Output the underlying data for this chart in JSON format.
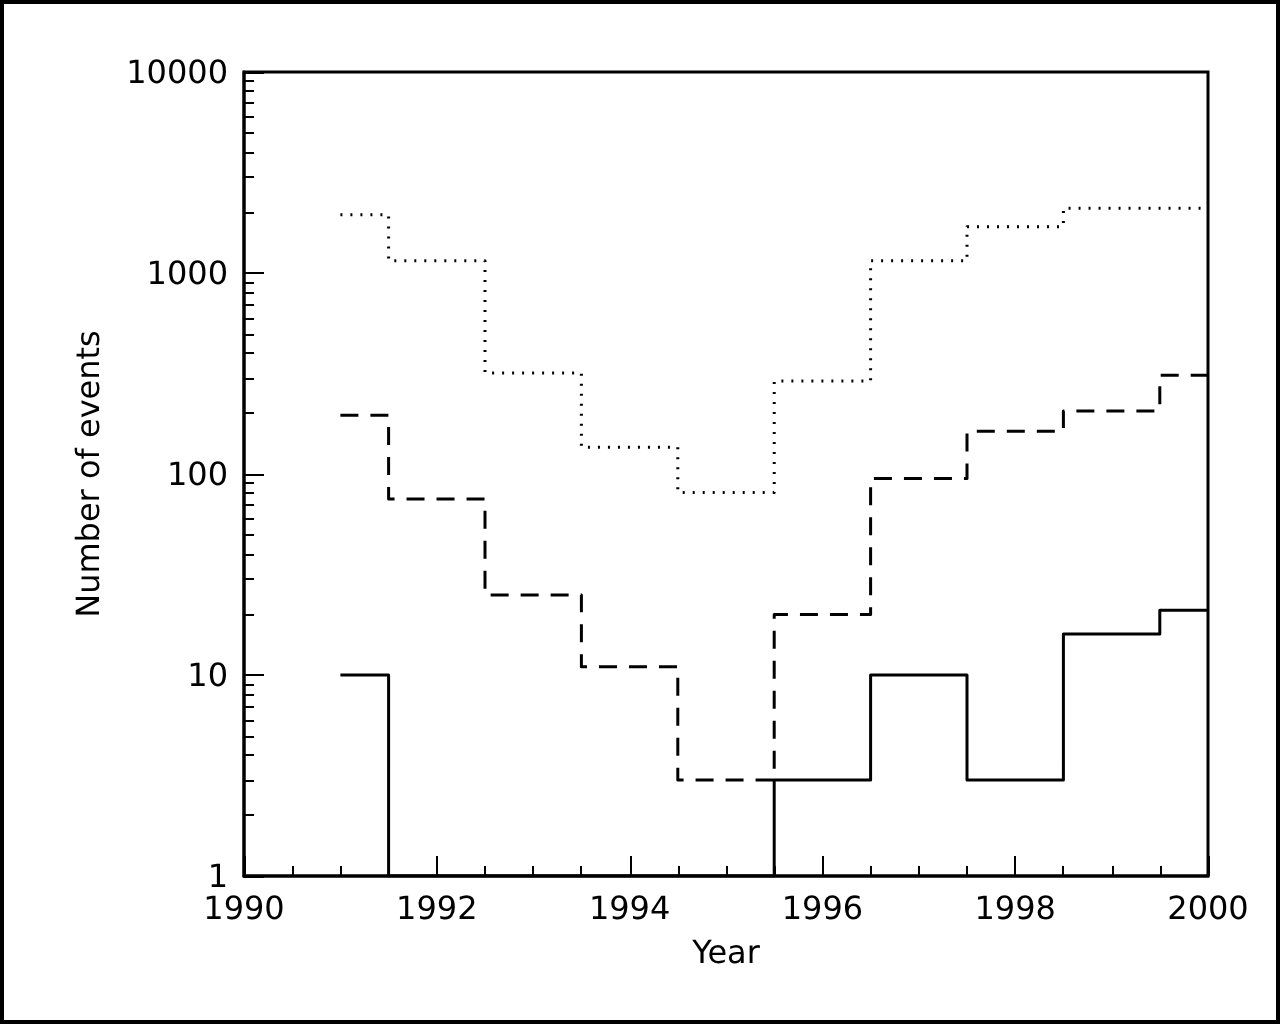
{
  "chart_data": {
    "type": "step",
    "xlabel": "Year",
    "ylabel": "Number of events",
    "x": [
      1991,
      1992,
      1993,
      1994,
      1995,
      1996,
      1997,
      1998,
      1999,
      2000
    ],
    "series": [
      {
        "color": "#000000",
        "line_style": "dotted",
        "values": [
          1950,
          1150,
          318,
          136,
          81,
          290,
          1150,
          1700,
          2100,
          2100
        ]
      },
      {
        "color": "#000000",
        "line_style": "dashed",
        "values": [
          196,
          75,
          25,
          11,
          3,
          20,
          95,
          163,
          206,
          310
        ]
      },
      {
        "color": "#000000",
        "line_style": "solid",
        "values": [
          10,
          1,
          1,
          1,
          1,
          3,
          10,
          3,
          16,
          21
        ]
      }
    ],
    "xlim": [
      1990,
      2000
    ],
    "xticks": [
      1990,
      1992,
      1994,
      1996,
      1998,
      2000
    ],
    "ylim": [
      1,
      10000
    ],
    "yticks": [
      1,
      10,
      100,
      1000,
      10000
    ],
    "log": "y",
    "grid": false,
    "marker": "none"
  }
}
